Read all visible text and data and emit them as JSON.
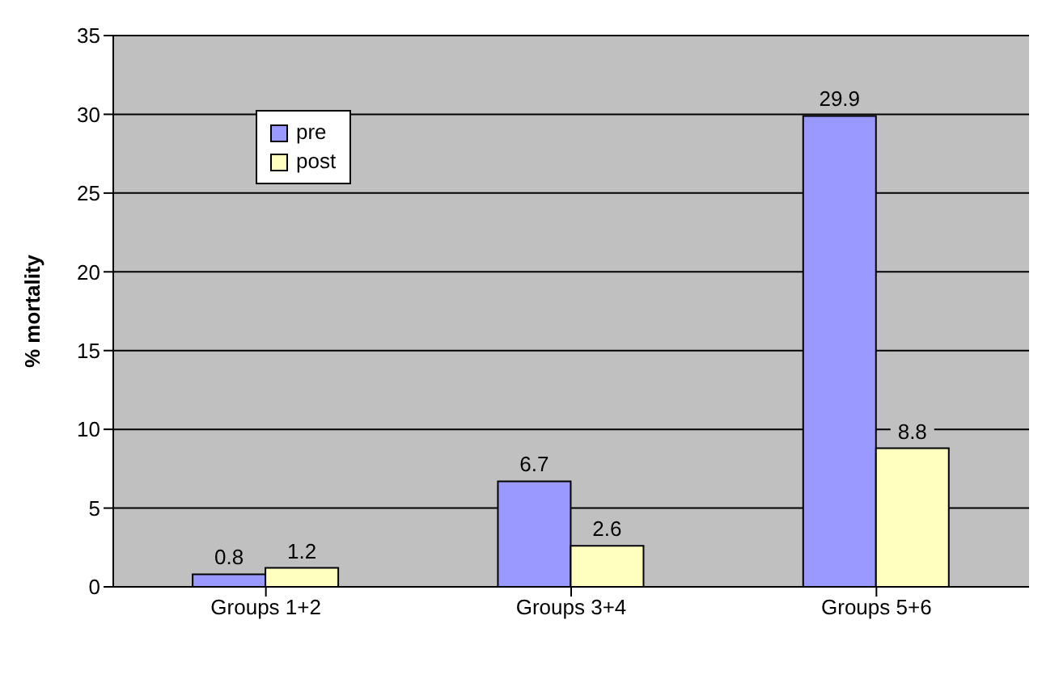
{
  "chart_data": {
    "type": "bar",
    "ylabel": "% mortality",
    "categories": [
      "Groups 1+2",
      "Groups 3+4",
      "Groups 5+6"
    ],
    "series": [
      {
        "name": "pre",
        "color": "#9999ff",
        "values": [
          0.8,
          6.7,
          29.9
        ]
      },
      {
        "name": "post",
        "color": "#ffffc0",
        "values": [
          1.2,
          2.6,
          8.8
        ]
      }
    ],
    "ylim": [
      0,
      35
    ],
    "yticks": [
      0,
      5,
      10,
      15,
      20,
      25,
      30,
      35
    ],
    "grid": "y",
    "legend": "top left",
    "data_labels": true
  }
}
